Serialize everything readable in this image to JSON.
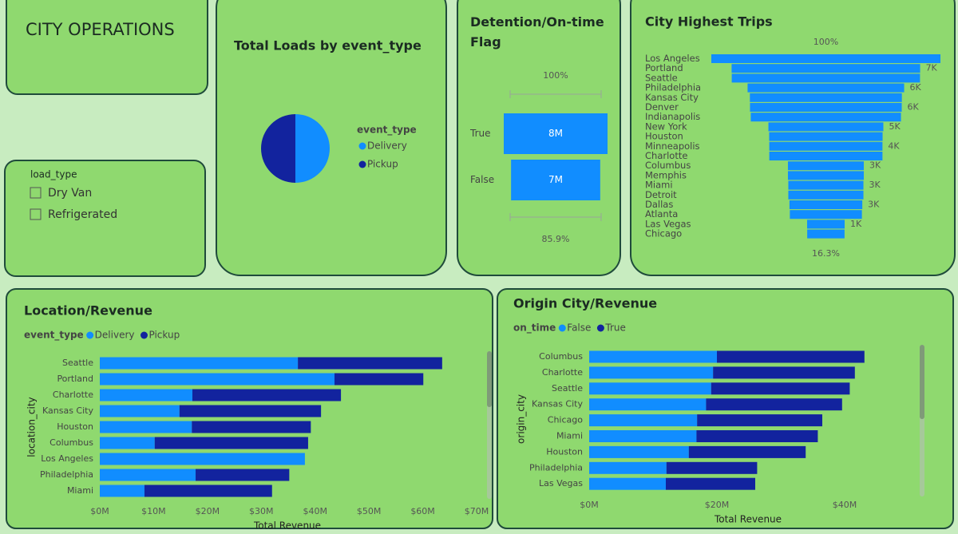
{
  "header": {
    "title": "CITY OPERATIONS"
  },
  "slicer": {
    "title": "load_type",
    "options": [
      "Dry Van",
      "Refrigerated"
    ]
  },
  "chart_data": [
    {
      "type": "pie",
      "title": "Total Loads by event_type",
      "legend_title": "event_type",
      "categories": [
        "Delivery",
        "Pickup"
      ],
      "values": [
        50,
        50
      ],
      "colors": [
        "#118dff",
        "#12239e"
      ]
    },
    {
      "type": "funnel",
      "title": "Detention/On-time Flag",
      "categories": [
        "True",
        "False"
      ],
      "values": [
        8100000,
        6960000
      ],
      "value_labels": [
        "8M",
        "7M"
      ],
      "top_label": "100%",
      "bottom_label": "85.9%",
      "color": "#118dff",
      "label_inside": true
    },
    {
      "type": "funnel",
      "title": "City Highest Trips",
      "categories": [
        "Los Angeles",
        "Portland",
        "Seattle",
        "Philadelphia",
        "Kansas City",
        "Denver",
        "Indianapolis",
        "New York",
        "Houston",
        "Minneapolis",
        "Charlotte",
        "Columbus",
        "Memphis",
        "Miami",
        "Detroit",
        "Dallas",
        "Atlanta",
        "Las Vegas",
        "Chicago"
      ],
      "values": [
        9030,
        7430,
        7420,
        6170,
        5990,
        5980,
        5920,
        4530,
        4470,
        4460,
        4460,
        2990,
        2990,
        2960,
        2960,
        2870,
        2840,
        1480,
        1472
      ],
      "value_labels": [
        null,
        "7K",
        null,
        "6K",
        null,
        "6K",
        null,
        "5K",
        null,
        "4K",
        null,
        "3K",
        null,
        "3K",
        null,
        "3K",
        null,
        "1K",
        null
      ],
      "top_label": "100%",
      "bottom_label": "16.3%",
      "color": "#118dff",
      "label_inside": false
    },
    {
      "type": "stacked_hbar",
      "title": "Location/Revenue",
      "legend_title": "event_type",
      "y_label": "location_city",
      "x_label": "Total Revenue",
      "categories": [
        "Seattle",
        "Portland",
        "Charlotte",
        "Kansas City",
        "Houston",
        "Columbus",
        "Los Angeles",
        "Philadelphia",
        "Miami"
      ],
      "series": [
        {
          "name": "Delivery",
          "color": "#118dff",
          "values": [
            36.8,
            43.6,
            17.2,
            14.8,
            17.1,
            10.2,
            38.1,
            17.8,
            8.3
          ]
        },
        {
          "name": "Pickup",
          "color": "#12239e",
          "values": [
            26.8,
            16.5,
            27.6,
            26.3,
            22.1,
            28.5,
            0,
            17.4,
            23.7
          ]
        }
      ],
      "xlim": [
        0,
        70
      ],
      "xticks": [
        {
          "value": 0,
          "label": "$0M"
        },
        {
          "value": 10,
          "label": "$10M"
        },
        {
          "value": 20,
          "label": "$20M"
        },
        {
          "value": 30,
          "label": "$30M"
        },
        {
          "value": 40,
          "label": "$40M"
        },
        {
          "value": 50,
          "label": "$50M"
        },
        {
          "value": 60,
          "label": "$60M"
        },
        {
          "value": 70,
          "label": "$70M"
        }
      ]
    },
    {
      "type": "stacked_hbar",
      "title": "Origin City/Revenue",
      "legend_title": "on_time",
      "y_label": "origin_city",
      "x_label": "Total Revenue",
      "categories": [
        "Columbus",
        "Charlotte",
        "Seattle",
        "Kansas City",
        "Chicago",
        "Miami",
        "Houston",
        "Philadelphia",
        "Las Vegas"
      ],
      "series": [
        {
          "name": "False",
          "color": "#118dff",
          "values": [
            20.0,
            19.4,
            19.1,
            18.3,
            16.9,
            16.8,
            15.6,
            12.1,
            12.0
          ]
        },
        {
          "name": "True",
          "color": "#12239e",
          "values": [
            23.1,
            22.2,
            21.7,
            21.3,
            19.6,
            19.0,
            18.3,
            14.2,
            14.0
          ]
        }
      ],
      "xlim": [
        0,
        50
      ],
      "xticks": [
        {
          "value": 0,
          "label": "$0M"
        },
        {
          "value": 20,
          "label": "$20M"
        },
        {
          "value": 40,
          "label": "$40M"
        }
      ]
    }
  ]
}
